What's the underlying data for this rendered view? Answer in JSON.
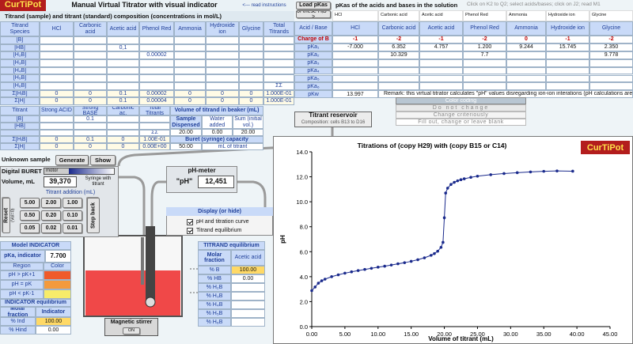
{
  "header": {
    "logo": "CurTiPot",
    "title": "Manual Virtual Titrator with visual indicator",
    "instructions": "<--- read instructions",
    "subtitle": "Titrand (sample) and titrant (standard) composition (concentrations in mol/L)"
  },
  "titrand": {
    "columns": [
      "Titrand Species",
      "HCl",
      "Carbonic acid",
      "Acetic acid",
      "Phenol Red",
      "Ammonia",
      "Hydroxide ion",
      "Glycine",
      "Total Titrands"
    ],
    "rows": [
      [
        "[B]",
        null,
        null,
        null,
        null,
        null,
        null,
        null,
        null
      ],
      [
        "[HB]",
        null,
        null,
        "0,1",
        null,
        null,
        null,
        null,
        null
      ],
      [
        "[H₂B]",
        null,
        null,
        null,
        "0.00002",
        null,
        null,
        null,
        null
      ],
      [
        "[H₃B]",
        null,
        null,
        null,
        null,
        null,
        null,
        null,
        null
      ],
      [
        "[H₄B]",
        null,
        null,
        null,
        null,
        null,
        null,
        null,
        null
      ],
      [
        "[H₅B]",
        null,
        null,
        null,
        null,
        null,
        null,
        null,
        null
      ],
      [
        "[H₆B]",
        null,
        null,
        null,
        null,
        null,
        null,
        null,
        "ΣΣ"
      ],
      [
        "Σ[HᵢB]",
        "0",
        "0",
        "0.1",
        "0.00002",
        "0",
        "0",
        "0",
        "1.000E-01"
      ],
      [
        "Σ[H]",
        "0",
        "0",
        "0.1",
        "0.00004",
        "0",
        "0",
        "0",
        "1.000E-01"
      ]
    ]
  },
  "pka": {
    "button": [
      "Load pKas",
      "of these HᵢB ->"
    ],
    "title": "pKas of the acids and bases in the solution",
    "hint": "Click on K2 to Q2; select acids/bases; click on J2; read M1",
    "names": [
      "HCl",
      "Carbonic acid",
      "Acetic acid",
      "Phenol Red",
      "Ammonia",
      "Hydroxide ion",
      "Glycine"
    ],
    "rows": [
      [
        "Acid / Base",
        "HCl",
        "Carbonic acid",
        "Acetic acid",
        "Phenol Red",
        "Ammonia",
        "Hydroxide ion",
        "Glycine"
      ],
      [
        "Charge of B",
        "-1",
        "-2",
        "-1",
        "-2",
        "0",
        "-1",
        "-2"
      ],
      [
        "pKa₁",
        "-7.000",
        "6.352",
        "4.757",
        "1.200",
        "9.244",
        "15.745",
        "2.350"
      ],
      [
        "pKa₂",
        null,
        "10.329",
        null,
        "7.7",
        null,
        null,
        "9.778"
      ],
      [
        "pKa₃",
        null,
        null,
        null,
        null,
        null,
        null,
        null
      ],
      [
        "pKa₄",
        null,
        null,
        null,
        null,
        null,
        null,
        null
      ],
      [
        "pKa₅",
        null,
        null,
        null,
        null,
        null,
        null,
        null
      ],
      [
        "pKa₆",
        null,
        null,
        null,
        null,
        null,
        null,
        null
      ],
      [
        "pKw",
        "13.997"
      ]
    ],
    "remark": "Remark: this virtual titrator calculates \"pH\" values disregarding ion-ion interations (pH calculations are available in"
  },
  "titrant": {
    "columns": [
      "Titrant",
      "Strong ACID",
      "Strong BASE",
      "Carbonic ac.",
      "Total Titrants"
    ],
    "rows": [
      [
        "[B]",
        null,
        "0.1",
        null,
        null
      ],
      [
        "[HB]",
        null,
        null,
        null,
        null
      ],
      [
        null,
        null,
        null,
        null,
        "ΣΣ"
      ],
      [
        "Σ[HᵢB]",
        "0",
        "0.1",
        "0",
        "1.00E-01"
      ],
      [
        "Σ[H]",
        "0",
        "0",
        "0",
        "0.00E+00"
      ]
    ]
  },
  "volume": {
    "title": "Volume of titrand in beaker (mL)",
    "headers": [
      "Sample Dispensed",
      "Water added",
      "Sum (initial vol.)"
    ],
    "values": [
      "20.00",
      "0.00",
      "20.00"
    ],
    "buret_label": "Buret (syringe) capacity",
    "buret_value": "50.00",
    "buret_unit": "mL of titrant"
  },
  "color_coding": {
    "title": "Color coding",
    "items": [
      "Do not change",
      "Change criteriously",
      "Fill out, change or leave blank"
    ]
  },
  "reservoir": {
    "title": "Titrant reservoir",
    "composition": "Composition: cells B13 to D16"
  },
  "unknown": {
    "label": "Unknown sample",
    "buttons": [
      "Generate",
      "Show"
    ]
  },
  "buret": {
    "title": "Digital BURET",
    "motor": "motor",
    "volume_label": "Volume, mL",
    "volume": "39,370",
    "syringe": "Syringe with titrant",
    "addition_title": "Titrant addition (mL)",
    "steps": [
      "5.00",
      "2.00",
      "1.00",
      "0.50",
      "0.20",
      "0.10",
      "0.05",
      "0.02",
      "0.01"
    ],
    "reset": "Reset",
    "reset_note": "(Vol=0)",
    "step_back": "Step back"
  },
  "ph_meter": {
    "title": "pH-meter",
    "label": "\"pH\"",
    "value": "12,451"
  },
  "display": {
    "title": "Display (or hide)",
    "options": [
      {
        "label": "pH and titration curve",
        "checked": true
      },
      {
        "label": "Titrand equilibrium",
        "checked": true
      }
    ]
  },
  "indicator": {
    "title": "Model INDICATOR",
    "pka_label": "pKa, indicator",
    "pka": "7.700",
    "headers": [
      "Region",
      "Color"
    ],
    "regions": [
      {
        "label": "pH > pK+1",
        "color": "#ef5a2a"
      },
      {
        "label": "pH = pK",
        "color": "#f39a3d"
      },
      {
        "label": "pH < pK-1",
        "color": "#f7ec6a"
      }
    ]
  },
  "indicator_eq": {
    "title": "INDICATOR equilibrium",
    "headers": [
      "Molar fraction",
      "Indicator"
    ],
    "rows": [
      [
        "% Ind",
        "100.00"
      ],
      [
        "% Hind",
        "0.00"
      ]
    ]
  },
  "stirrer": {
    "label": "Magnetic stirrer",
    "state": "ON"
  },
  "titrand_eq": {
    "title": "TITRAND equilibrium",
    "headers": [
      "Molar fraction",
      "Acetic acid"
    ],
    "rows": [
      [
        "% B",
        "100.00"
      ],
      [
        "% HB",
        "0.00"
      ],
      [
        "% H₂B",
        null
      ],
      [
        "% H₃B",
        null
      ],
      [
        "% H₄B",
        null
      ],
      [
        "% H₅B",
        null
      ],
      [
        "% H₆B",
        null
      ]
    ]
  },
  "chart_data": {
    "type": "line",
    "title": "Titrations of (copy H29) with (copy B15 or C14)",
    "logo": "CurTiPot",
    "x_label": "Volume of titrant (mL)",
    "y_label": "pH",
    "color": "#1a2a8c",
    "x": [
      0,
      0.5,
      1,
      1.5,
      2,
      3,
      4,
      5,
      6,
      7,
      8,
      9,
      10,
      11,
      12,
      13,
      14,
      15,
      16,
      17,
      18,
      18.5,
      19,
      19.5,
      19.8,
      20,
      20.2,
      20.5,
      21,
      21.5,
      22,
      22.5,
      23,
      24,
      25,
      27,
      29,
      31,
      33,
      35,
      37,
      39.37
    ],
    "values": [
      2.88,
      3.17,
      3.48,
      3.67,
      3.8,
      4.0,
      4.15,
      4.28,
      4.39,
      4.49,
      4.58,
      4.67,
      4.76,
      4.84,
      4.93,
      5.03,
      5.12,
      5.23,
      5.36,
      5.51,
      5.71,
      5.85,
      6.04,
      6.35,
      6.75,
      8.72,
      10.7,
      11.09,
      11.39,
      11.56,
      11.68,
      11.77,
      11.84,
      11.96,
      12.05,
      12.17,
      12.26,
      12.33,
      12.39,
      12.44,
      12.47,
      12.45
    ],
    "xlim": [
      0,
      45
    ],
    "ylim": [
      0,
      14
    ],
    "xticks": [
      {
        "value": 0,
        "label": "0.00"
      },
      {
        "value": 5,
        "label": "5.00"
      },
      {
        "value": 10,
        "label": "10.00"
      },
      {
        "value": 15,
        "label": "15.00"
      },
      {
        "value": 20,
        "label": "20.00"
      },
      {
        "value": 25,
        "label": "25.00"
      },
      {
        "value": 30,
        "label": "30.00"
      },
      {
        "value": 35,
        "label": "35.00"
      },
      {
        "value": 40,
        "label": "40.00"
      },
      {
        "value": 45,
        "label": "45.00"
      }
    ],
    "yticks": [
      {
        "value": 0,
        "label": "0.0"
      },
      {
        "value": 2,
        "label": "2.0"
      },
      {
        "value": 4,
        "label": "4.0"
      },
      {
        "value": 6,
        "label": "6.0"
      },
      {
        "value": 8,
        "label": "8.0"
      },
      {
        "value": 10,
        "label": "10.0"
      },
      {
        "value": 12,
        "label": "12.0"
      },
      {
        "value": 14,
        "label": "14.0"
      }
    ]
  }
}
